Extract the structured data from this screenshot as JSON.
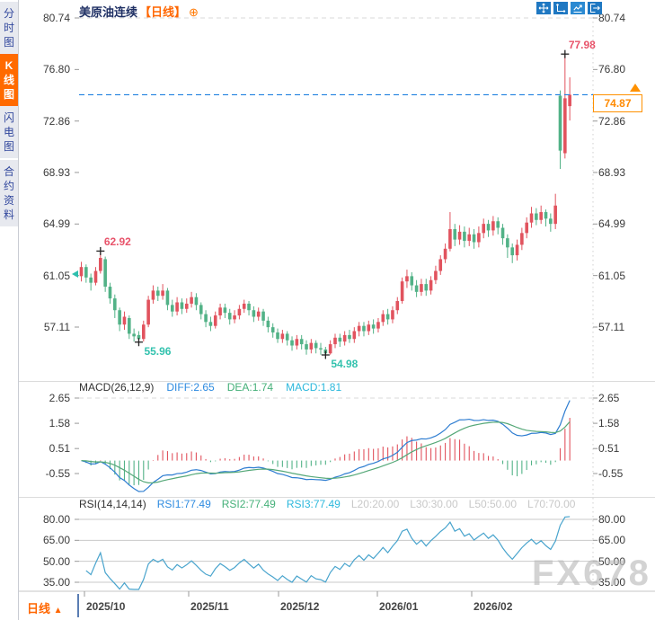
{
  "window": {
    "title_instrument": "美原油连续",
    "title_period": "【日线】",
    "add_symbol": "⊕"
  },
  "toolbar": {
    "icons": [
      {
        "name": "pan-move-icon"
      },
      {
        "name": "axis-scale-icon"
      },
      {
        "name": "line-chart-icon"
      },
      {
        "name": "exit-fullscreen-icon"
      }
    ]
  },
  "sidebar": {
    "items": [
      {
        "label": "分时图",
        "active": false
      },
      {
        "label": "K线图",
        "active": true
      },
      {
        "label": "闪电图",
        "active": false
      },
      {
        "label": "合约资料",
        "active": false
      }
    ]
  },
  "main_panel": {
    "y_axis_labels": [
      "80.74",
      "76.80",
      "72.86",
      "68.93",
      "64.99",
      "61.05",
      "57.11"
    ],
    "current_price_tag": "74.87",
    "markers": [
      {
        "label": "62.92",
        "kind": "high"
      },
      {
        "label": "55.96",
        "kind": "low"
      },
      {
        "label": "54.98",
        "kind": "low"
      },
      {
        "label": "77.98",
        "kind": "high"
      }
    ]
  },
  "macd_panel": {
    "title": "MACD(26,12,9)",
    "legend": {
      "diff": "DIFF:2.65",
      "dea": "DEA:1.74",
      "macd": "MACD:1.81"
    },
    "y_axis_labels": [
      "2.65",
      "1.58",
      "0.51",
      "-0.55"
    ]
  },
  "rsi_panel": {
    "title": "RSI(14,14,14)",
    "legend": {
      "rsi1": "RSI1:77.49",
      "rsi2": "RSI2:77.49",
      "rsi3": "RSI3:77.49",
      "l20": "L20:20.00",
      "l30": "L30:30.00",
      "l50": "L50:50.00",
      "l70": "L70:70.00"
    },
    "y_axis_labels": [
      "80.00",
      "65.00",
      "50.00",
      "35.00"
    ]
  },
  "x_axis": {
    "labels": [
      "2025/10",
      "2025/11",
      "2025/12",
      "2026/01",
      "2026/02"
    ]
  },
  "bottom_bar": {
    "period_label": "日线",
    "period_arrow": "▲"
  },
  "watermark": "FX678",
  "colors": {
    "up_candle": "#e1535e",
    "down_candle": "#52b287",
    "accent_orange": "#ff6600",
    "current_price_line": "#1d7fe0",
    "diff_line": "#2e7dd1",
    "dea_line": "#55a878",
    "rsi_line": "#49a4cd",
    "high_label": "#e8546b",
    "low_label": "#33c2ae"
  },
  "chart_data": [
    {
      "type": "candlestick",
      "title": "美原油连续 日线",
      "y_ticks": [
        80.74,
        76.8,
        72.86,
        68.93,
        64.99,
        61.05,
        57.11
      ],
      "x_tick_labels": [
        "2025/10",
        "2025/11",
        "2025/12",
        "2026/01",
        "2026/02"
      ],
      "current_price": 74.87,
      "annotations": [
        {
          "index": 4,
          "price": 62.92,
          "kind": "high"
        },
        {
          "index": 12,
          "price": 55.96,
          "kind": "low"
        },
        {
          "index": 51,
          "price": 54.98,
          "kind": "low"
        },
        {
          "index": 101,
          "price": 77.98,
          "kind": "high"
        }
      ],
      "ohlc": [
        [
          61.0,
          62.1,
          60.6,
          61.7
        ],
        [
          61.7,
          61.9,
          60.5,
          60.9
        ],
        [
          60.9,
          61.2,
          59.9,
          60.5
        ],
        [
          60.5,
          61.7,
          60.3,
          61.4
        ],
        [
          61.4,
          62.92,
          61.2,
          62.4
        ],
        [
          62.3,
          62.5,
          59.8,
          60.2
        ],
        [
          60.2,
          60.5,
          58.9,
          59.3
        ],
        [
          59.3,
          59.6,
          57.8,
          58.4
        ],
        [
          58.4,
          58.6,
          56.8,
          57.3
        ],
        [
          57.3,
          58.3,
          56.9,
          57.9
        ],
        [
          57.8,
          58.0,
          56.2,
          56.6
        ],
        [
          56.6,
          57.0,
          56.0,
          56.4
        ],
        [
          56.5,
          56.8,
          55.96,
          56.2
        ],
        [
          56.2,
          57.6,
          56.0,
          57.3
        ],
        [
          57.3,
          59.5,
          57.1,
          59.2
        ],
        [
          59.2,
          60.3,
          58.9,
          59.9
        ],
        [
          59.9,
          60.2,
          59.1,
          59.5
        ],
        [
          59.5,
          60.4,
          59.2,
          59.9
        ],
        [
          59.9,
          60.1,
          58.4,
          58.8
        ],
        [
          58.8,
          59.2,
          57.9,
          58.3
        ],
        [
          58.3,
          59.4,
          58.0,
          59.0
        ],
        [
          59.0,
          59.3,
          58.1,
          58.5
        ],
        [
          58.5,
          59.3,
          58.2,
          58.9
        ],
        [
          58.9,
          59.8,
          58.6,
          59.4
        ],
        [
          59.4,
          59.7,
          58.4,
          58.8
        ],
        [
          58.8,
          59.0,
          57.7,
          58.1
        ],
        [
          58.1,
          58.4,
          57.1,
          57.5
        ],
        [
          57.5,
          57.9,
          56.8,
          57.2
        ],
        [
          57.2,
          58.3,
          57.0,
          58.0
        ],
        [
          58.0,
          58.9,
          57.7,
          58.6
        ],
        [
          58.6,
          58.9,
          57.8,
          58.2
        ],
        [
          58.2,
          58.5,
          57.3,
          57.7
        ],
        [
          57.7,
          58.4,
          57.4,
          58.0
        ],
        [
          58.0,
          58.8,
          57.7,
          58.5
        ],
        [
          58.5,
          59.2,
          58.2,
          58.9
        ],
        [
          58.9,
          59.1,
          58.0,
          58.4
        ],
        [
          58.4,
          58.7,
          57.5,
          57.9
        ],
        [
          57.9,
          58.6,
          57.6,
          58.3
        ],
        [
          58.3,
          58.5,
          57.2,
          57.6
        ],
        [
          57.6,
          57.9,
          56.7,
          57.1
        ],
        [
          57.1,
          57.4,
          56.3,
          56.7
        ],
        [
          56.7,
          57.0,
          55.9,
          56.2
        ],
        [
          56.2,
          56.9,
          55.9,
          56.6
        ],
        [
          56.6,
          56.8,
          55.7,
          56.1
        ],
        [
          56.1,
          56.4,
          55.3,
          55.7
        ],
        [
          55.7,
          56.5,
          55.4,
          56.2
        ],
        [
          56.2,
          56.5,
          55.4,
          55.8
        ],
        [
          55.8,
          56.1,
          55.0,
          55.4
        ],
        [
          55.4,
          56.2,
          55.1,
          55.9
        ],
        [
          55.9,
          56.1,
          55.1,
          55.5
        ],
        [
          55.5,
          55.9,
          55.0,
          55.4
        ],
        [
          55.4,
          55.6,
          54.98,
          55.1
        ],
        [
          55.1,
          56.1,
          55.0,
          55.8
        ],
        [
          55.8,
          56.6,
          55.5,
          56.3
        ],
        [
          56.3,
          56.6,
          55.6,
          56.0
        ],
        [
          56.0,
          56.8,
          55.7,
          56.5
        ],
        [
          56.5,
          56.9,
          55.9,
          56.2
        ],
        [
          56.2,
          57.1,
          55.9,
          56.8
        ],
        [
          56.8,
          57.5,
          56.4,
          57.2
        ],
        [
          57.2,
          57.5,
          56.4,
          56.8
        ],
        [
          56.8,
          57.6,
          56.5,
          57.3
        ],
        [
          57.3,
          57.7,
          56.6,
          57.0
        ],
        [
          57.0,
          57.8,
          56.7,
          57.5
        ],
        [
          57.5,
          58.4,
          57.2,
          58.1
        ],
        [
          58.1,
          58.5,
          57.3,
          57.7
        ],
        [
          57.7,
          58.7,
          57.4,
          58.4
        ],
        [
          58.4,
          59.4,
          58.1,
          59.1
        ],
        [
          59.1,
          60.9,
          58.9,
          60.6
        ],
        [
          60.6,
          61.5,
          60.1,
          61.0
        ],
        [
          61.0,
          61.3,
          59.9,
          60.3
        ],
        [
          60.3,
          60.7,
          59.4,
          59.8
        ],
        [
          59.8,
          60.8,
          59.5,
          60.4
        ],
        [
          60.4,
          60.8,
          59.5,
          59.9
        ],
        [
          59.9,
          61.0,
          59.6,
          60.7
        ],
        [
          60.7,
          61.8,
          60.4,
          61.4
        ],
        [
          61.4,
          62.6,
          61.1,
          62.3
        ],
        [
          62.3,
          63.5,
          62.0,
          63.1
        ],
        [
          63.1,
          65.9,
          62.9,
          64.6
        ],
        [
          64.6,
          65.0,
          63.3,
          63.8
        ],
        [
          63.8,
          64.9,
          63.4,
          64.4
        ],
        [
          64.4,
          64.8,
          63.2,
          63.7
        ],
        [
          63.7,
          64.7,
          63.3,
          64.2
        ],
        [
          64.2,
          64.6,
          63.1,
          63.6
        ],
        [
          63.6,
          64.8,
          63.2,
          64.3
        ],
        [
          64.3,
          65.4,
          63.9,
          65.0
        ],
        [
          65.0,
          65.3,
          64.0,
          64.5
        ],
        [
          64.5,
          65.6,
          64.1,
          65.2
        ],
        [
          65.2,
          65.5,
          64.2,
          64.7
        ],
        [
          64.7,
          65.0,
          63.4,
          63.9
        ],
        [
          63.9,
          64.2,
          62.4,
          63.2
        ],
        [
          63.2,
          63.5,
          62.0,
          62.6
        ],
        [
          62.6,
          63.8,
          62.2,
          63.4
        ],
        [
          63.4,
          64.7,
          63.0,
          64.3
        ],
        [
          64.3,
          65.5,
          63.9,
          65.1
        ],
        [
          65.1,
          66.3,
          64.7,
          65.8
        ],
        [
          65.8,
          66.2,
          64.9,
          65.3
        ],
        [
          65.3,
          66.4,
          65.0,
          65.9
        ],
        [
          65.9,
          66.1,
          64.8,
          65.4
        ],
        [
          65.4,
          65.8,
          64.4,
          65.0
        ],
        [
          65.0,
          67.3,
          64.6,
          66.4
        ],
        [
          74.8,
          75.2,
          69.2,
          70.6
        ],
        [
          70.4,
          77.98,
          70.0,
          74.6
        ],
        [
          74.0,
          76.2,
          72.9,
          74.87
        ]
      ]
    },
    {
      "type": "macd",
      "params": [
        26,
        12,
        9
      ],
      "latest": {
        "diff": 2.65,
        "dea": 1.74,
        "macd": 1.81
      },
      "y_ticks": [
        2.65,
        1.58,
        0.51,
        -0.55
      ]
    },
    {
      "type": "rsi",
      "params": [
        14,
        14,
        14
      ],
      "latest": {
        "rsi1": 77.49,
        "rsi2": 77.49,
        "rsi3": 77.49
      },
      "reference_lines": [
        80,
        65,
        50,
        35
      ],
      "y_ticks": [
        80,
        65,
        50,
        35
      ]
    }
  ]
}
